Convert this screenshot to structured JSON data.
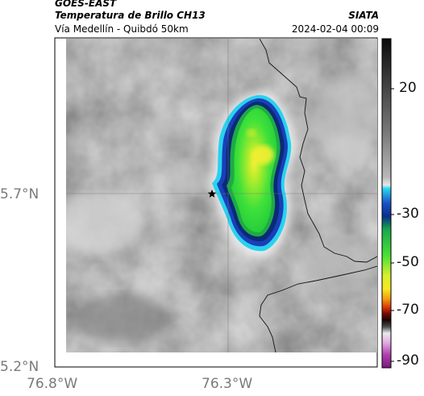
{
  "header": {
    "satellite": "GOES-EAST",
    "product": "Temperatura de Brillo CH13",
    "region": "Vía Medellín - Quibdó 50km",
    "agency": "SIATA",
    "datetime": "2024-02-04 00:09"
  },
  "axes": {
    "lat_ticks": [
      "5.7°N",
      "5.2°N"
    ],
    "lon_ticks": [
      "76.8°W",
      "76.3°W"
    ]
  },
  "colorbar": {
    "ticks": [
      "20",
      "-30",
      "-50",
      "-70",
      "-90"
    ]
  },
  "marker": {
    "icon": "star-marker-icon"
  },
  "colors": {
    "cloud_edge": "#2bd6f0",
    "cloud_core": "#3fe13f",
    "coldest": "#f2f232",
    "frame": "#000000"
  }
}
